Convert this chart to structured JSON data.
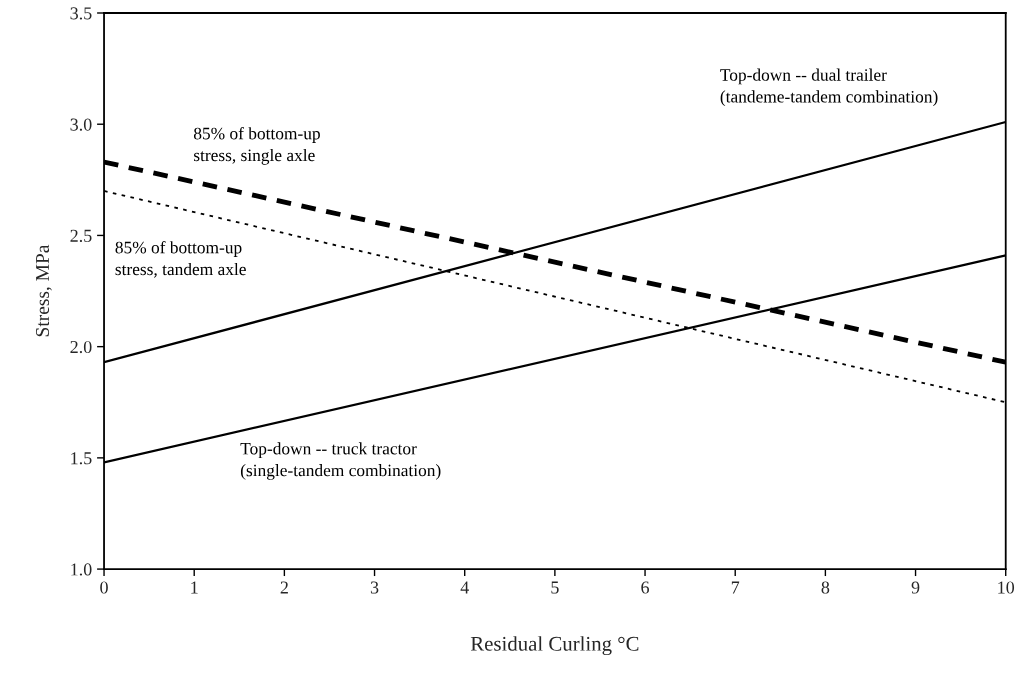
{
  "chart_data": {
    "type": "line",
    "xlabel": "Residual Curling °C",
    "ylabel": "Stress, MPa",
    "x": [
      0,
      10
    ],
    "series": [
      {
        "name": "Top-down -- dual trailer\n(tandeme-tandem combination)",
        "color": "#000000",
        "values": [
          1.93,
          3.01
        ],
        "line_style": "solid"
      },
      {
        "name": "Top-down -- truck tractor\n(single-tandem combination)",
        "color": "#000000",
        "values": [
          1.48,
          2.41
        ],
        "line_style": "solid"
      },
      {
        "name": "85% of bottom-up\nstress, single axle",
        "color": "#000000",
        "values": [
          2.83,
          1.93
        ],
        "line_style": "dashed"
      },
      {
        "name": "85% of bottom-up\nstress, tandem axle",
        "color": "#000000",
        "values": [
          2.7,
          1.75
        ],
        "line_style": "dotted"
      }
    ],
    "xlim": [
      0,
      10
    ],
    "ylim": [
      1.0,
      3.5
    ],
    "xticks": [
      0,
      1,
      2,
      3,
      4,
      5,
      6,
      7,
      8,
      9,
      10
    ],
    "yticks": [
      {
        "value": 1.0,
        "label": "1.0"
      },
      {
        "value": 1.5,
        "label": "1.5"
      },
      {
        "value": 2.0,
        "label": "2.0"
      },
      {
        "value": 2.5,
        "label": "2.5"
      },
      {
        "value": 3.0,
        "label": "3.0"
      },
      {
        "value": 3.5,
        "label": "3.5"
      }
    ],
    "grid": false,
    "legend": false
  }
}
